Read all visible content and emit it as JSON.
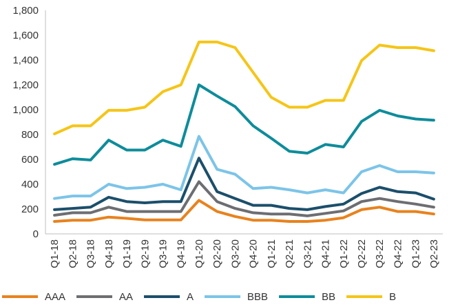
{
  "chart_data": {
    "type": "line",
    "title": "",
    "xlabel": "",
    "ylabel": "",
    "ylim": [
      0,
      1800
    ],
    "yticks": [
      0,
      200,
      400,
      600,
      800,
      1000,
      1200,
      1400,
      1600,
      1800
    ],
    "ytick_labels": [
      "0",
      "200",
      "400",
      "600",
      "800",
      "1,000",
      "1,200",
      "1,400",
      "1,600",
      "1,800"
    ],
    "grid": false,
    "legend_position": "bottom",
    "categories": [
      "Q1-18",
      "Q2-18",
      "Q3-18",
      "Q4-18",
      "Q1-19",
      "Q2-19",
      "Q3-19",
      "Q4-19",
      "Q1-20",
      "Q2-20",
      "Q3-20",
      "Q4-20",
      "Q1-21",
      "Q2-21",
      "Q3-21",
      "Q4-21",
      "Q1-22",
      "Q2-22",
      "Q3-22",
      "Q4-22",
      "Q1-23",
      "Q2-23"
    ],
    "series": [
      {
        "name": "AAA",
        "color": "#E8821E",
        "values": [
          100,
          110,
          110,
          135,
          125,
          112,
          112,
          112,
          270,
          180,
          140,
          110,
          110,
          100,
          100,
          110,
          130,
          195,
          215,
          180,
          180,
          160
        ]
      },
      {
        "name": "AA",
        "color": "#6D6E71",
        "values": [
          150,
          170,
          170,
          215,
          180,
          180,
          180,
          180,
          420,
          260,
          205,
          170,
          160,
          160,
          145,
          165,
          185,
          260,
          285,
          260,
          240,
          215
        ]
      },
      {
        "name": "A",
        "color": "#1B4F6B",
        "values": [
          195,
          205,
          215,
          295,
          260,
          250,
          260,
          260,
          610,
          340,
          285,
          230,
          230,
          205,
          195,
          220,
          240,
          325,
          375,
          340,
          330,
          280
        ]
      },
      {
        "name": "BBB",
        "color": "#7CC4E8",
        "values": [
          285,
          305,
          305,
          400,
          365,
          375,
          400,
          355,
          785,
          520,
          480,
          365,
          375,
          355,
          330,
          355,
          330,
          500,
          550,
          500,
          500,
          490
        ]
      },
      {
        "name": "BB",
        "color": "#0E8C9A",
        "values": [
          560,
          605,
          595,
          755,
          675,
          675,
          755,
          705,
          1200,
          1110,
          1025,
          870,
          770,
          665,
          650,
          720,
          700,
          905,
          995,
          950,
          925,
          915
        ]
      },
      {
        "name": "B",
        "color": "#F5C518",
        "values": [
          805,
          870,
          870,
          995,
          995,
          1020,
          1145,
          1200,
          1545,
          1545,
          1500,
          1300,
          1100,
          1020,
          1020,
          1075,
          1075,
          1395,
          1520,
          1500,
          1500,
          1475
        ]
      }
    ]
  }
}
